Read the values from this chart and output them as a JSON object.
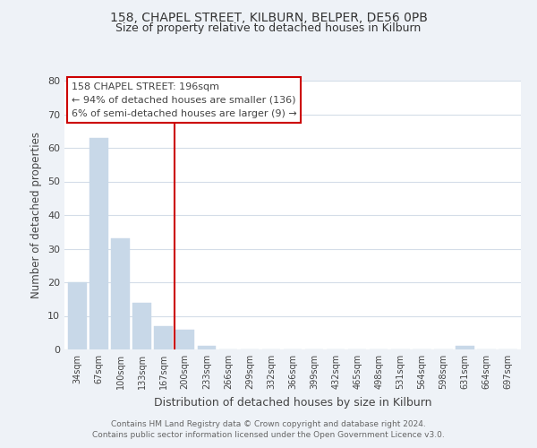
{
  "title": "158, CHAPEL STREET, KILBURN, BELPER, DE56 0PB",
  "subtitle": "Size of property relative to detached houses in Kilburn",
  "xlabel": "Distribution of detached houses by size in Kilburn",
  "ylabel": "Number of detached properties",
  "bar_labels": [
    "34sqm",
    "67sqm",
    "100sqm",
    "133sqm",
    "167sqm",
    "200sqm",
    "233sqm",
    "266sqm",
    "299sqm",
    "332sqm",
    "366sqm",
    "399sqm",
    "432sqm",
    "465sqm",
    "498sqm",
    "531sqm",
    "564sqm",
    "598sqm",
    "631sqm",
    "664sqm",
    "697sqm"
  ],
  "bar_values": [
    20,
    63,
    33,
    14,
    7,
    6,
    1,
    0,
    0,
    0,
    0,
    0,
    0,
    0,
    0,
    0,
    0,
    0,
    1,
    0,
    0
  ],
  "bar_color": "#c8d8e8",
  "vline_color": "#cc0000",
  "vline_index": 5,
  "ylim": [
    0,
    80
  ],
  "yticks": [
    0,
    10,
    20,
    30,
    40,
    50,
    60,
    70,
    80
  ],
  "annotation_title": "158 CHAPEL STREET: 196sqm",
  "annotation_line1": "← 94% of detached houses are smaller (136)",
  "annotation_line2": "6% of semi-detached houses are larger (9) →",
  "footer_line1": "Contains HM Land Registry data © Crown copyright and database right 2024.",
  "footer_line2": "Contains public sector information licensed under the Open Government Licence v3.0.",
  "background_color": "#eef2f7",
  "plot_bg_color": "#ffffff",
  "grid_color": "#d4dde8",
  "title_color": "#333333",
  "text_color": "#444444"
}
